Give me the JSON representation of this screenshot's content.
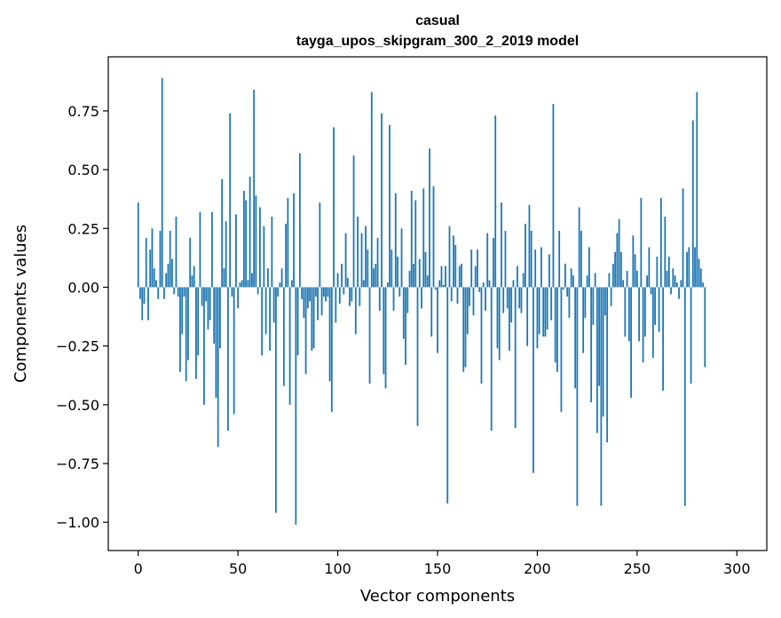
{
  "chart_data": {
    "type": "bar",
    "title": "casual",
    "subtitle": "tayga_upos_skipgram_300_2_2019 model",
    "xlabel": "Vector components",
    "ylabel": "Components values",
    "xlim": [
      -15,
      315
    ],
    "ylim": [
      -1.12,
      0.98
    ],
    "xticks": [
      0,
      50,
      100,
      150,
      200,
      250,
      300
    ],
    "yticks": [
      -1.0,
      -0.75,
      -0.5,
      -0.25,
      0.0,
      0.25,
      0.5,
      0.75
    ],
    "ytick_labels": [
      "−1.00",
      "−0.75",
      "−0.50",
      "−0.25",
      "0.00",
      "0.25",
      "0.50",
      "0.75"
    ],
    "bar_color": "#1f77b4",
    "grid": false,
    "values": [
      0.36,
      -0.05,
      -0.14,
      -0.07,
      0.21,
      -0.14,
      0.16,
      0.25,
      0.08,
      0.03,
      -0.05,
      0.24,
      0.89,
      -0.05,
      0.06,
      0.1,
      0.24,
      0.12,
      -0.03,
      0.3,
      -0.04,
      -0.36,
      -0.2,
      -0.04,
      -0.4,
      -0.31,
      0.21,
      0.05,
      0.09,
      -0.39,
      -0.29,
      0.32,
      -0.08,
      -0.5,
      -0.06,
      -0.18,
      -0.14,
      0.32,
      -0.24,
      -0.47,
      -0.68,
      -0.26,
      0.46,
      0.08,
      0.28,
      -0.61,
      0.74,
      -0.04,
      -0.54,
      0.31,
      -0.09,
      0.02,
      0.03,
      0.41,
      0.37,
      0.03,
      0.47,
      0.06,
      0.84,
      0.39,
      -0.03,
      0.34,
      -0.29,
      0.26,
      -0.2,
      0.08,
      -0.27,
      0.3,
      -0.15,
      -0.96,
      -0.04,
      0.02,
      0.08,
      -0.42,
      0.27,
      0.38,
      -0.5,
      0.03,
      0.4,
      -1.01,
      -0.29,
      0.57,
      -0.05,
      -0.13,
      -0.37,
      -0.09,
      -0.06,
      -0.27,
      -0.26,
      -0.04,
      -0.14,
      0.36,
      -0.12,
      -0.04,
      -0.06,
      -0.04,
      -0.4,
      -0.53,
      0.68,
      -0.15,
      0.06,
      -0.07,
      0.1,
      -0.03,
      0.23,
      0.04,
      -0.08,
      -0.06,
      0.56,
      -0.2,
      0.3,
      -0.08,
      0.23,
      0.03,
      0.26,
      0.16,
      -0.41,
      0.83,
      0.08,
      0.1,
      0.21,
      -0.1,
      0.74,
      -0.37,
      -0.43,
      0.02,
      0.69,
      0.16,
      -0.1,
      0.4,
      0.13,
      -0.04,
      0.25,
      -0.22,
      -0.33,
      -0.11,
      0.07,
      0.41,
      0.1,
      0.37,
      -0.59,
      0.12,
      -0.09,
      0.42,
      0.15,
      0.05,
      0.59,
      -0.21,
      0.43,
      -0.01,
      -0.28,
      0.03,
      0.09,
      0.01,
      0.09,
      -0.92,
      0.26,
      -0.06,
      0.22,
      0.18,
      -0.07,
      0.09,
      0.1,
      -0.36,
      -0.34,
      -0.2,
      -0.08,
      0.16,
      -0.12,
      0.09,
      0.16,
      -0.02,
      -0.41,
      0.02,
      -0.1,
      0.23,
      0.03,
      -0.61,
      0.21,
      0.73,
      -0.26,
      -0.31,
      0.36,
      -0.11,
      0.24,
      -0.09,
      -0.27,
      -0.15,
      0.03,
      -0.6,
      0.09,
      -0.09,
      -0.11,
      0.06,
      0.27,
      -0.25,
      0.35,
      0.24,
      -0.79,
      0.16,
      -0.26,
      -0.2,
      0.17,
      -0.21,
      -0.21,
      -0.18,
      0.14,
      -0.14,
      0.78,
      -0.32,
      -0.36,
      0.24,
      -0.53,
      -0.01,
      0.1,
      -0.04,
      -0.13,
      0.08,
      0.05,
      -0.43,
      -0.93,
      0.34,
      0.24,
      -0.28,
      -0.13,
      0.05,
      0.17,
      -0.49,
      -0.16,
      0.06,
      -0.62,
      -0.42,
      -0.93,
      -0.55,
      -0.12,
      -0.66,
      0.06,
      -0.08,
      0.1,
      0.15,
      0.23,
      0.29,
      0.15,
      0.03,
      -0.21,
      0.07,
      -0.23,
      -0.47,
      0.22,
      0.14,
      0.07,
      -0.23,
      0.38,
      -0.32,
      -0.21,
      0.05,
      0.17,
      -0.03,
      -0.3,
      -0.16,
      0.13,
      -0.19,
      0.38,
      -0.44,
      0.3,
      0.07,
      0.13,
      -0.03,
      0.08,
      0.05,
      0.02,
      -0.05,
      0.03,
      0.42,
      -0.93,
      0.15,
      0.17,
      -0.41,
      0.71,
      0.17,
      0.83,
      0.12,
      0.08,
      0.02,
      -0.34
    ]
  }
}
